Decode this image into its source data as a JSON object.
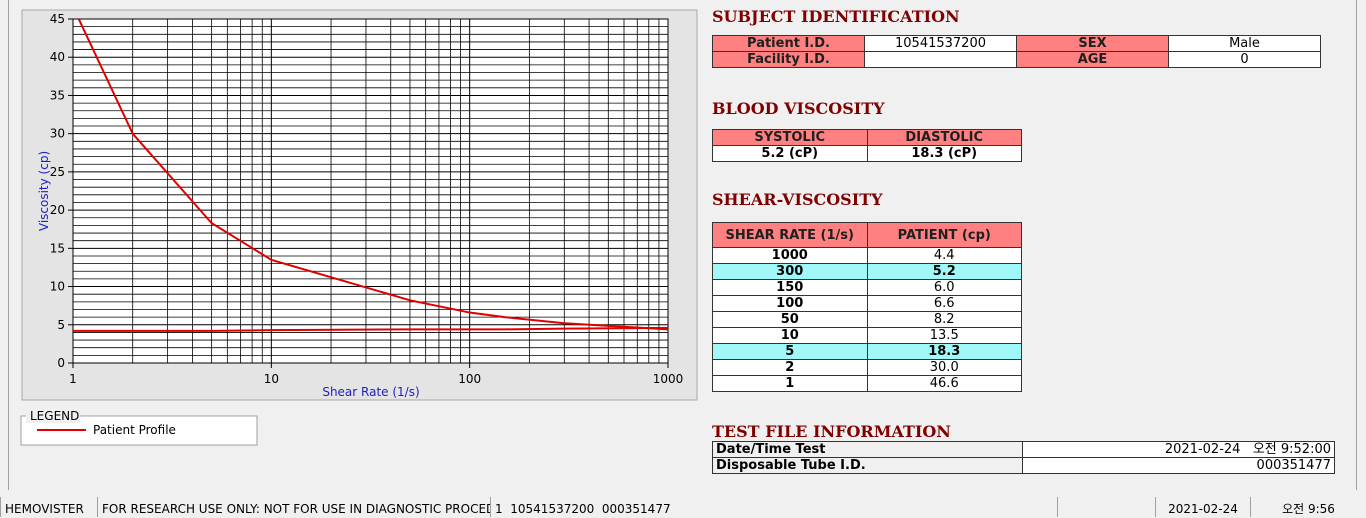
{
  "chart_data": {
    "type": "line",
    "x_label": "Shear Rate (1/s)",
    "y_label": "Viscosity (cp)",
    "x": [
      1,
      2,
      5,
      10,
      50,
      100,
      150,
      300,
      1000
    ],
    "series": [
      {
        "name": "Patient Profile",
        "color": "#e00000",
        "values": [
          46.6,
          30.0,
          18.3,
          13.5,
          8.2,
          6.6,
          6.0,
          5.2,
          4.4
        ]
      },
      {
        "color": "#e00000",
        "values": [
          4.2,
          4.2,
          4.2,
          4.3,
          4.4,
          4.4,
          4.4,
          4.5,
          4.6
        ]
      }
    ],
    "x_scale": "log",
    "xlim": [
      1,
      1000
    ],
    "xticks": [
      1,
      10,
      100,
      1000
    ],
    "ylim": [
      0,
      45
    ],
    "yticks": [
      0,
      5,
      10,
      15,
      20,
      25,
      30,
      35,
      40,
      45
    ],
    "grid": true,
    "legend_title": "LEGEND"
  },
  "subject_identification": {
    "title": "SUBJECT IDENTIFICATION",
    "rows": [
      [
        "Patient I.D.",
        "10541537200",
        "SEX",
        "Male"
      ],
      [
        "Facility I.D.",
        null,
        "AGE",
        "0"
      ]
    ]
  },
  "blood_viscosity": {
    "title": "BLOOD VISCOSITY",
    "headers": [
      "SYSTOLIC",
      "DIASTOLIC"
    ],
    "values": [
      "5.2 (cP)",
      "18.3 (cP)"
    ]
  },
  "shear_viscosity": {
    "title": "SHEAR-VISCOSITY",
    "headers": [
      "SHEAR RATE (1/s)",
      "PATIENT (cp)"
    ],
    "rows": [
      {
        "cells": [
          "1000",
          "4.4"
        ],
        "highlight": false
      },
      {
        "cells": [
          "300",
          "5.2"
        ],
        "highlight": true
      },
      {
        "cells": [
          "150",
          "6.0"
        ],
        "highlight": false
      },
      {
        "cells": [
          "100",
          "6.6"
        ],
        "highlight": false
      },
      {
        "cells": [
          "50",
          "8.2"
        ],
        "highlight": false
      },
      {
        "cells": [
          "10",
          "13.5"
        ],
        "highlight": false
      },
      {
        "cells": [
          "5",
          "18.3"
        ],
        "highlight": true
      },
      {
        "cells": [
          "2",
          "30.0"
        ],
        "highlight": false
      },
      {
        "cells": [
          "1",
          "46.6"
        ],
        "highlight": false
      }
    ]
  },
  "test_file_information": {
    "title": "TEST FILE INFORMATION",
    "rows": [
      [
        "Date/Time Test",
        "2021-02-24   오전 9:52:00"
      ],
      [
        "Disposable Tube I.D.",
        "000351477"
      ]
    ]
  },
  "status_bar": [
    "HEMOVISTER",
    "FOR RESEARCH USE ONLY: NOT FOR USE IN DIAGNOSTIC PROCEDURES",
    "1  10541537200  000351477",
    "2021-02-24",
    "오전 9:56"
  ]
}
